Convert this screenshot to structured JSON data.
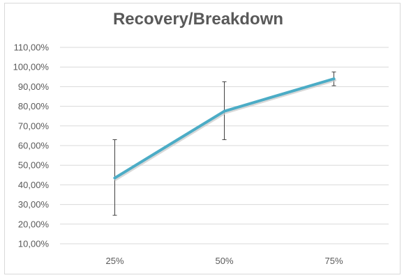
{
  "chart_data": {
    "type": "line",
    "title": "Recovery/Breakdown",
    "xlabel": "",
    "ylabel": "",
    "categories": [
      "25%",
      "50%",
      "75%"
    ],
    "series": [
      {
        "values": [
          0.435,
          0.775,
          0.94
        ],
        "error_low": [
          0.245,
          0.63,
          0.905
        ],
        "error_high": [
          0.63,
          0.925,
          0.975
        ],
        "color": "#4bacc6"
      }
    ],
    "ylim": [
      0.1,
      1.1
    ],
    "yticks": [
      0.1,
      0.2,
      0.3,
      0.4,
      0.5,
      0.6,
      0.7,
      0.8,
      0.9,
      1.0,
      1.1
    ],
    "ytick_labels": [
      "10,00%",
      "20,00%",
      "30,00%",
      "40,00%",
      "50,00%",
      "60,00%",
      "70,00%",
      "80,00%",
      "90,00%",
      "100,00%",
      "110,00%"
    ],
    "grid": true,
    "legend": "none"
  }
}
